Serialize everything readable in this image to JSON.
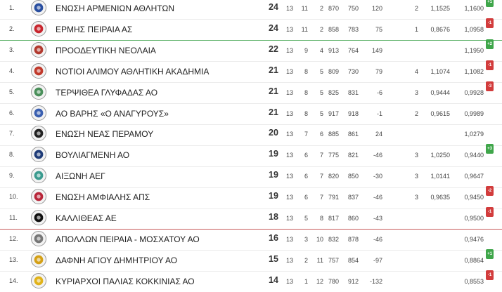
{
  "colors": {
    "promotion_line": "#5fb36b",
    "relegation_line": "#c75b5b",
    "badge_up": "#3fa64a",
    "badge_down": "#d23c3c"
  },
  "rows": [
    {
      "pos": "1.",
      "team": "ΕΝΩΣΗ ΑΡΜΕΝΙΩΝ ΑΘΛΗΤΩΝ",
      "logo": "enosi-armenion-logo",
      "logo_color": "#2a4fa0",
      "pts": "24",
      "played": "13",
      "w": "11",
      "l": "2",
      "gf": "870",
      "ga": "750",
      "gd": "120",
      "tb": "2",
      "r1": "1,1525",
      "r2": "1,1600",
      "move": "+1",
      "dir": "up"
    },
    {
      "pos": "2.",
      "team": "ΕΡΜΗΣ ΠΕΙΡΑΙΑ ΑΣ",
      "logo": "ermis-peiraia-logo",
      "logo_color": "#c8262e",
      "pts": "24",
      "played": "13",
      "w": "11",
      "l": "2",
      "gf": "858",
      "ga": "783",
      "gd": "75",
      "tb": "1",
      "r1": "0,8676",
      "r2": "1,0958",
      "move": "-1",
      "dir": "down"
    },
    {
      "pos": "3.",
      "team": "ΠΡΟΟΔΕΥΤΙΚΗ ΝΕΟΛΑΙΑ",
      "logo": "proodeftiki-neolaia-logo",
      "logo_color": "#b23a2f",
      "pts": "22",
      "played": "13",
      "w": "9",
      "l": "4",
      "gf": "913",
      "ga": "764",
      "gd": "149",
      "tb": "",
      "r1": "",
      "r2": "1,1950",
      "move": "+2",
      "dir": "up"
    },
    {
      "pos": "4.",
      "team": "ΝΟΤΙΟΙ ΑΛΙΜΟΥ ΑΘΛΗΤΙΚΗ ΑΚΑΔΗΜΙΑ",
      "logo": "notioi-alimou-logo",
      "logo_color": "#c0392b",
      "pts": "21",
      "played": "13",
      "w": "8",
      "l": "5",
      "gf": "809",
      "ga": "730",
      "gd": "79",
      "tb": "4",
      "r1": "1,1074",
      "r2": "1,1082",
      "move": "-1",
      "dir": "down"
    },
    {
      "pos": "5.",
      "team": "ΤΕΡΨΙΘΕΑ ΓΛΥΦΑΔΑΣ ΑΟ",
      "logo": "terpsithea-glyfadas-logo",
      "logo_color": "#4a8f5a",
      "pts": "21",
      "played": "13",
      "w": "8",
      "l": "5",
      "gf": "825",
      "ga": "831",
      "gd": "-6",
      "tb": "3",
      "r1": "0,9444",
      "r2": "0,9928",
      "move": "-3",
      "dir": "down"
    },
    {
      "pos": "6.",
      "team": "ΑΟ ΒΑΡΗΣ «Ο ΑΝΑΓΥΡΟΥΣ»",
      "logo": "ao-varis-logo",
      "logo_color": "#3a5fb0",
      "pts": "21",
      "played": "13",
      "w": "8",
      "l": "5",
      "gf": "917",
      "ga": "918",
      "gd": "-1",
      "tb": "2",
      "r1": "0,9615",
      "r2": "0,9989",
      "move": "",
      "dir": ""
    },
    {
      "pos": "7.",
      "team": "ΕΝΩΣΗ ΝΕΑΣ ΠΕΡΑΜΟΥ",
      "logo": "enosi-neas-peramou-logo",
      "logo_color": "#222222",
      "pts": "20",
      "played": "13",
      "w": "7",
      "l": "6",
      "gf": "885",
      "ga": "861",
      "gd": "24",
      "tb": "",
      "r1": "",
      "r2": "1,0279",
      "move": "",
      "dir": ""
    },
    {
      "pos": "8.",
      "team": "ΒΟΥΛΙΑΓΜΕΝΗ ΑΟ",
      "logo": "vouliagmeni-logo",
      "logo_color": "#1f3c78",
      "pts": "19",
      "played": "13",
      "w": "6",
      "l": "7",
      "gf": "775",
      "ga": "821",
      "gd": "-46",
      "tb": "3",
      "r1": "1,0250",
      "r2": "0,9440",
      "move": "+3",
      "dir": "up"
    },
    {
      "pos": "9.",
      "team": "ΑΙΞΩΝΗ ΑΕΓ",
      "logo": "aixoni-logo",
      "logo_color": "#3b9b8f",
      "pts": "19",
      "played": "13",
      "w": "6",
      "l": "7",
      "gf": "820",
      "ga": "850",
      "gd": "-30",
      "tb": "3",
      "r1": "1,0141",
      "r2": "0,9647",
      "move": "",
      "dir": ""
    },
    {
      "pos": "10.",
      "team": "ΕΝΩΣΗ ΑΜΦΙΑΛΗΣ ΑΠΣ",
      "logo": "enosi-amfialis-logo",
      "logo_color": "#b8263a",
      "pts": "19",
      "played": "13",
      "w": "6",
      "l": "7",
      "gf": "791",
      "ga": "837",
      "gd": "-46",
      "tb": "3",
      "r1": "0,9635",
      "r2": "0,9450",
      "move": "-2",
      "dir": "down"
    },
    {
      "pos": "11.",
      "team": "ΚΑΛΛΙΘΕΑΣ ΑΕ",
      "logo": "kallitheas-logo",
      "logo_color": "#111111",
      "pts": "18",
      "played": "13",
      "w": "5",
      "l": "8",
      "gf": "817",
      "ga": "860",
      "gd": "-43",
      "tb": "",
      "r1": "",
      "r2": "0,9500",
      "move": "-1",
      "dir": "down"
    },
    {
      "pos": "12.",
      "team": "ΑΠΟΛΛΩΝ ΠΕΙΡΑΙΑ - ΜΟΣΧΑΤΟΥ ΑΟ",
      "logo": "apollon-peiraia-logo",
      "logo_color": "#777777",
      "pts": "16",
      "played": "13",
      "w": "3",
      "l": "10",
      "gf": "832",
      "ga": "878",
      "gd": "-46",
      "tb": "",
      "r1": "",
      "r2": "0,9476",
      "move": "",
      "dir": ""
    },
    {
      "pos": "13.",
      "team": "ΔΑΦΝΗ ΑΓΙΟΥ ΔΗΜΗΤΡΙΟΥ ΑΟ",
      "logo": "dafni-agiou-dimitriou-logo",
      "logo_color": "#d4a017",
      "pts": "15",
      "played": "13",
      "w": "2",
      "l": "11",
      "gf": "757",
      "ga": "854",
      "gd": "-97",
      "tb": "",
      "r1": "",
      "r2": "0,8864",
      "move": "+1",
      "dir": "up"
    },
    {
      "pos": "14.",
      "team": "ΚΥΡΙΑΡΧΟΙ ΠΑΛΙΑΣ ΚΟΚΚΙΝΙΑΣ ΑΟ",
      "logo": "kyriarchoi-logo",
      "logo_color": "#e0b21a",
      "pts": "14",
      "played": "13",
      "w": "1",
      "l": "12",
      "gf": "780",
      "ga": "912",
      "gd": "-132",
      "tb": "",
      "r1": "",
      "r2": "0,8553",
      "move": "-1",
      "dir": "down"
    }
  ]
}
